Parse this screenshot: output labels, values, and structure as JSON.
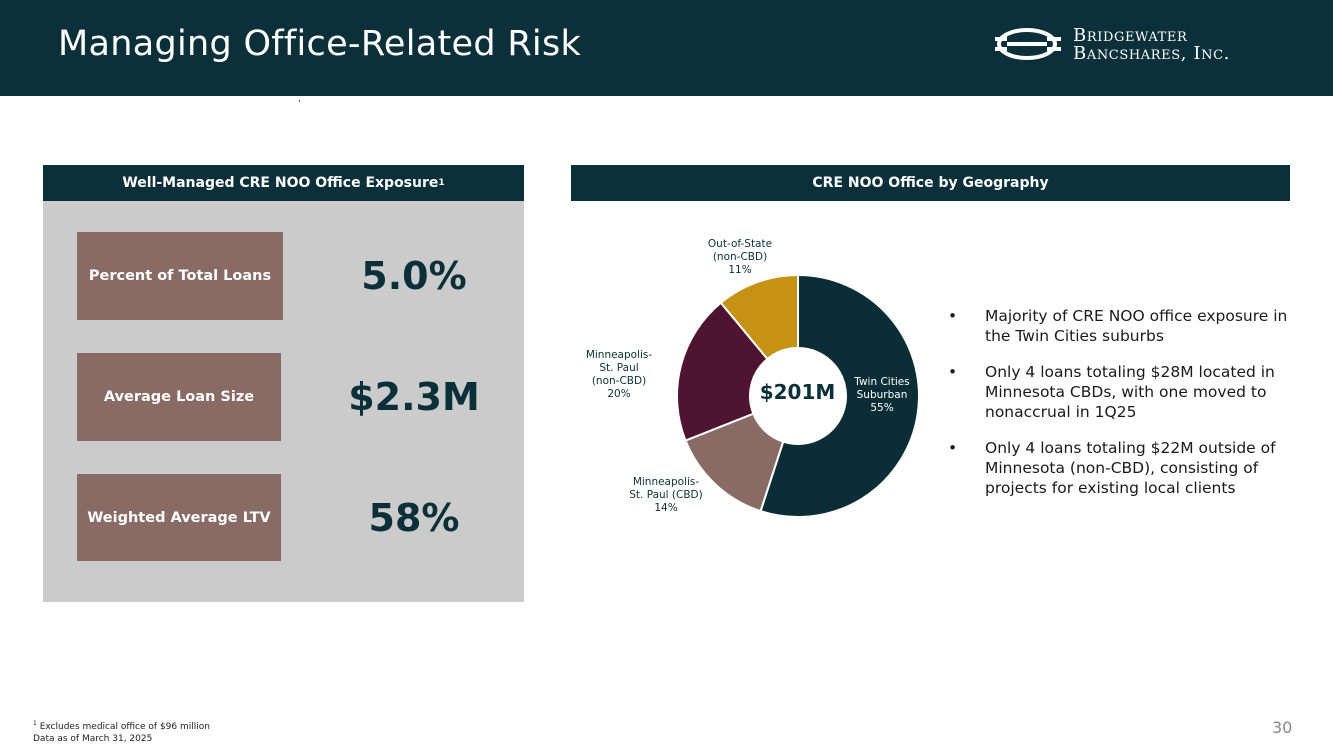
{
  "header": {
    "title": "Managing Office-Related Risk",
    "logo_line1": "Bridgewater",
    "logo_line2": "Bancshares, Inc."
  },
  "left_panel": {
    "heading": "Well-Managed CRE NOO Office Exposure",
    "heading_sup": "1",
    "metrics": [
      {
        "label": "Percent of Total Loans",
        "value": "5.0%"
      },
      {
        "label": "Average Loan Size",
        "value": "$2.3M"
      },
      {
        "label": "Weighted Average LTV",
        "value": "58%"
      }
    ]
  },
  "right_panel": {
    "heading": "CRE NOO Office by Geography",
    "bullets": [
      "Majority of CRE NOO office exposure in the Twin Cities suburbs",
      "Only 4 loans totaling $28M located in Minnesota CBDs, with one moved to nonaccrual in 1Q25",
      "Only 4 loans totaling $22M outside of Minnesota (non-CBD), consisting of projects for existing local clients"
    ],
    "bullet_symbol": "•"
  },
  "chart_data": {
    "type": "pie",
    "donut": true,
    "center_label": "$201M",
    "slices": [
      {
        "label_lines": [
          "Twin Cities",
          "Suburban",
          "55%"
        ],
        "value": 55,
        "color": "#0b2e36"
      },
      {
        "label_lines": [
          "Minneapolis-",
          "St. Paul (CBD)",
          "14%"
        ],
        "value": 14,
        "color": "#896b65"
      },
      {
        "label_lines": [
          "Minneapolis-",
          "St. Paul",
          "(non-CBD)",
          "20%"
        ],
        "value": 20,
        "color": "#4f1432"
      },
      {
        "label_lines": [
          "Out-of-State",
          "(non-CBD)",
          "11%"
        ],
        "value": 11,
        "color": "#c69214"
      }
    ]
  },
  "footer": {
    "footnote_sup": "1",
    "footnote": "Excludes medical office of $96 million",
    "data_note": "Data as of March 31, 2025",
    "page_number": "30"
  }
}
